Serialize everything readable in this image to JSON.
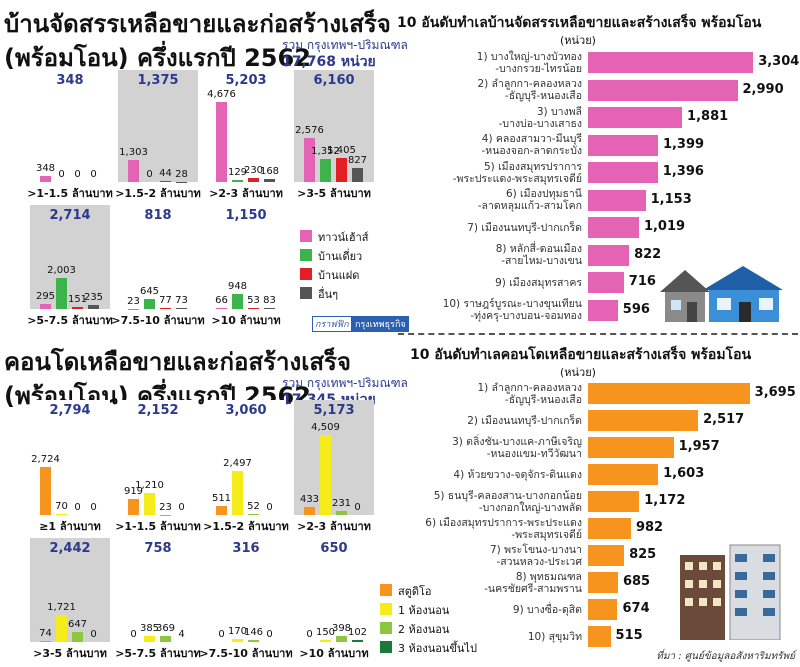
{
  "chart_data": [
    {
      "type": "small-multiples",
      "title": [
        "บ้านจัดสรรเหลือขายและก่อสร้างเสร็จ",
        "(พร้อมโอน) ครึ่งแรกปี 2562"
      ],
      "note": "รวม กรุงเทพฯ-ปริมณฑล",
      "total": "17,768 หน่วย",
      "series": [
        {
          "name": "ทาวน์เฮ้าส์",
          "color": "#e563b5"
        },
        {
          "name": "บ้านเดี่ยว",
          "color": "#3cb44b"
        },
        {
          "name": "บ้านแฝด",
          "color": "#e31e24"
        },
        {
          "name": "อื่นๆ",
          "color": "#555555"
        }
      ],
      "ylim": [
        0,
        5000
      ],
      "panels": [
        {
          "total": "348",
          "label": ">1-1.5 ล้านบาท",
          "values": [
            348,
            0,
            0,
            0
          ],
          "value_labels": [
            "348",
            "0",
            "0",
            "0"
          ]
        },
        {
          "total": "1,375",
          "label": ">1.5-2 ล้านบาท",
          "values": [
            1303,
            0,
            44,
            28
          ],
          "value_labels": [
            "1,303",
            "0",
            "44",
            "28"
          ]
        },
        {
          "total": "5,203",
          "label": ">2-3 ล้านบาท",
          "values": [
            4676,
            129,
            230,
            168
          ],
          "value_labels": [
            "4,676",
            "129",
            "230",
            "168"
          ]
        },
        {
          "total": "6,160",
          "label": ">3-5 ล้านบาท",
          "values": [
            2576,
            1352,
            1405,
            827
          ],
          "value_labels": [
            "2,576",
            "1,352",
            "1,405",
            "827"
          ]
        },
        {
          "total": "2,714",
          "label": ">5-7.5 ล้านบาท",
          "values": [
            295,
            2003,
            151,
            235
          ],
          "value_labels": [
            "295",
            "2,003",
            "151",
            "235"
          ]
        },
        {
          "total": "818",
          "label": ">7.5-10 ล้านบาท",
          "values": [
            23,
            645,
            77,
            73
          ],
          "value_labels": [
            "23",
            "645",
            "77",
            "73"
          ]
        },
        {
          "total": "1,150",
          "label": ">10 ล้านบาท",
          "values": [
            66,
            948,
            53,
            83
          ],
          "value_labels": [
            "66",
            "948",
            "53",
            "83"
          ]
        }
      ],
      "credit": [
        "กราฟฟิก",
        "กรุงเทพธุรกิจ"
      ]
    },
    {
      "type": "hbar",
      "title": "10 อันดับทำเลบ้านจัดสรรเหลือขายและสร้างเสร็จ พร้อมโอน",
      "unit": "(หน่วย)",
      "color": "#e563b5",
      "xlim": [
        0,
        3500
      ],
      "categories": [
        "1) บางใหญ่-บางบัวทอง\n-บางกรวย-ไทรน้อย",
        "2) ลำลูกกา-คลองหลวง\n-ธัญบุรี-หนองเสือ",
        "3) บางพลี\n-บางบ่อ-บางเสาธง",
        "4) คลองสามวา-มีนบุรี\n-หนองจอก-ลาดกระบัง",
        "5) เมืองสมุทรปราการ\n-พระประแดง-พระสมุทรเจดีย์",
        "6) เมืองปทุมธานี\n-ลาดหลุมแก้ว-สามโคก",
        "7) เมืองนนทบุรี-ปากเกร็ด",
        "8) หลักสี่-ดอนเมือง\n-สายไหม-บางเขน",
        "9) เมืองสมุทรสาคร",
        "10) ราษฎร์บูรณะ-บางขุนเทียน\n-ทุ่งครุ-บางบอน-จอมทอง"
      ],
      "values": [
        3304,
        2990,
        1881,
        1399,
        1396,
        1153,
        1019,
        822,
        716,
        596
      ],
      "value_labels": [
        "3,304",
        "2,990",
        "1,881",
        "1,399",
        "1,396",
        "1,153",
        "1,019",
        "822",
        "716",
        "596"
      ]
    },
    {
      "type": "small-multiples",
      "title": [
        "คอนโดเหลือขายและก่อสร้างเสร็จ",
        "(พร้อมโอน) ครึ่งแรกปี 2562"
      ],
      "note": "รวม กรุงเทพฯ-ปริมณฑล",
      "total": "17,345 หน่วย",
      "series": [
        {
          "name": "สตูดิโอ",
          "color": "#f7941d"
        },
        {
          "name": "1 ห้องนอน",
          "color": "#f5ec1a"
        },
        {
          "name": "2 ห้องนอน",
          "color": "#8dc63f"
        },
        {
          "name": "3 ห้องนอนขึ้นไป",
          "color": "#1a7a3c"
        }
      ],
      "ylim": [
        0,
        5000
      ],
      "panels": [
        {
          "total": "2,794",
          "label": "≥1 ล้านบาท",
          "values": [
            2724,
            70,
            0,
            0
          ],
          "value_labels": [
            "2,724",
            "70",
            "0",
            "0"
          ]
        },
        {
          "total": "2,152",
          "label": ">1-1.5 ล้านบาท",
          "values": [
            919,
            1210,
            23,
            0
          ],
          "value_labels": [
            "919",
            "1,210",
            "23",
            "0"
          ]
        },
        {
          "total": "3,060",
          "label": ">1.5-2 ล้านบาท",
          "values": [
            511,
            2497,
            52,
            0
          ],
          "value_labels": [
            "511",
            "2,497",
            "52",
            "0"
          ]
        },
        {
          "total": "5,173",
          "label": ">2-3 ล้านบาท",
          "values": [
            433,
            4509,
            231,
            0
          ],
          "value_labels": [
            "433",
            "4,509",
            "231",
            "0"
          ]
        },
        {
          "total": "2,442",
          "label": ">3-5 ล้านบาท",
          "values": [
            74,
            1721,
            647,
            0
          ],
          "value_labels": [
            "74",
            "1,721",
            "647",
            "0"
          ]
        },
        {
          "total": "758",
          "label": ">5-7.5 ล้านบาท",
          "values": [
            0,
            385,
            369,
            4
          ],
          "value_labels": [
            "0",
            "385",
            "369",
            "4"
          ]
        },
        {
          "total": "316",
          "label": ">7.5-10 ล้านบาท",
          "values": [
            0,
            170,
            146,
            0
          ],
          "value_labels": [
            "0",
            "170",
            "146",
            "0"
          ]
        },
        {
          "total": "650",
          "label": ">10 ล้านบาท",
          "values": [
            0,
            150,
            398,
            102
          ],
          "value_labels": [
            "0",
            "150",
            "398",
            "102"
          ]
        }
      ]
    },
    {
      "type": "hbar",
      "title": "10 อันดับทำเลคอนโดเหลือขายและสร้างเสร็จ พร้อมโอน",
      "unit": "(หน่วย)",
      "color": "#f7941d",
      "xlim": [
        0,
        4000
      ],
      "categories": [
        "1) ลำลูกกา-คลองหลวง\n-ธัญบุรี-หนองเสือ",
        "2) เมืองนนทบุรี-ปากเกร็ด",
        "3) ตลิ่งชัน-บางแค-ภาษีเจริญ\n-หนองแขม-ทวีวัฒนา",
        "4) ห้วยขวาง-จตุจักร-ดินแดง",
        "5) ธนบุรี-คลองสาน-บางกอกน้อย\n-บางกอกใหญ่-บางพลัด",
        "6) เมืองสมุทรปราการ-พระประแดง\n-พระสมุทรเจดีย์",
        "7) พระโขนง-บางนา\n-สวนหลวง-ประเวศ",
        "8) พุทธมณฑล\n-นครชัยศรี-สามพราน",
        "9) บางซื่อ-ดุสิต",
        "10) สุขุมวิท"
      ],
      "values": [
        3695,
        2517,
        1957,
        1603,
        1172,
        982,
        825,
        685,
        674,
        515
      ],
      "value_labels": [
        "3,695",
        "2,517",
        "1,957",
        "1,603",
        "1,172",
        "982",
        "825",
        "685",
        "674",
        "515"
      ],
      "source": "ที่มา : ศูนย์ข้อมูลอสังหาริมทรัพย์"
    }
  ]
}
